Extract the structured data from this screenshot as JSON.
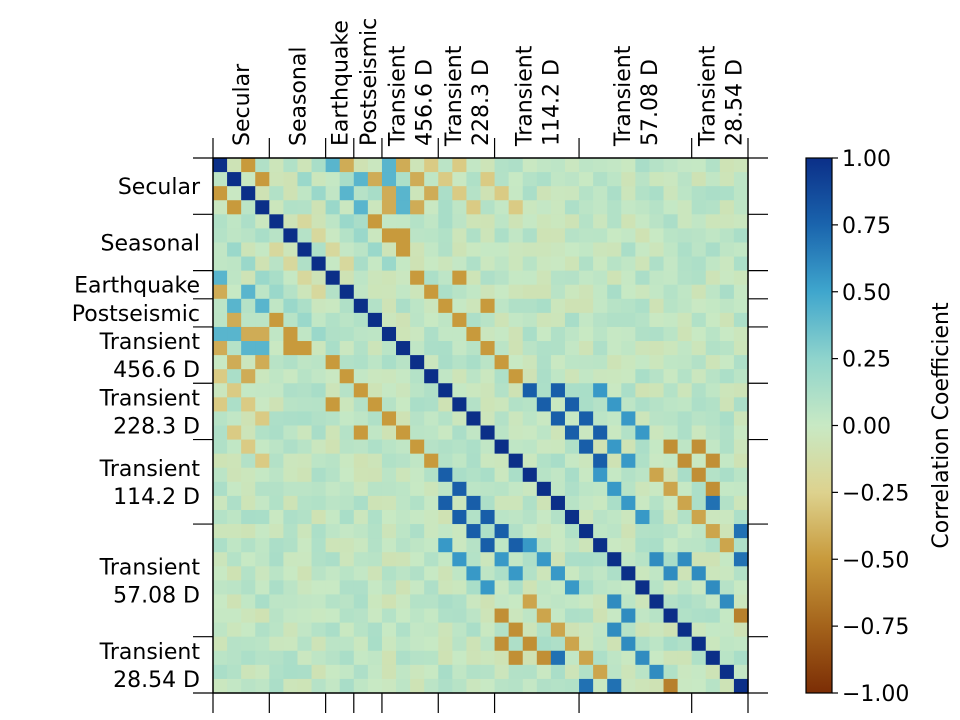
{
  "chart_data": {
    "type": "heatmap",
    "title": "",
    "groups": [
      "Secular",
      "Seasonal",
      "Earthquake",
      "Postseismic",
      "Transient 456.6 D",
      "Transient 228.3 D",
      "Transient 114.2 D",
      "Transient 57.08 D",
      "Transient 28.54 D"
    ],
    "group_sizes": [
      4,
      4,
      2,
      2,
      4,
      4,
      6,
      8,
      4
    ],
    "row_labels": [
      {
        "lines": [
          "Secular"
        ],
        "group": 0
      },
      {
        "lines": [
          "Seasonal"
        ],
        "group": 1
      },
      {
        "lines": [
          "Earthquake"
        ],
        "group": 2
      },
      {
        "lines": [
          "Postseismic"
        ],
        "group": 3
      },
      {
        "lines": [
          "Transient",
          "456.6 D"
        ],
        "group": 4
      },
      {
        "lines": [
          "Transient",
          "228.3 D"
        ],
        "group": 5
      },
      {
        "lines": [
          "Transient",
          "114.2 D"
        ],
        "group": 6
      },
      {
        "lines": [
          "Transient",
          "57.08 D"
        ],
        "group": 7
      },
      {
        "lines": [
          "Transient",
          "28.54 D"
        ],
        "group": 8
      }
    ],
    "col_labels": [
      {
        "lines": [
          "Secular"
        ],
        "group": 0
      },
      {
        "lines": [
          "Seasonal"
        ],
        "group": 1
      },
      {
        "lines": [
          "Earthquake"
        ],
        "group": 2
      },
      {
        "lines": [
          "Postseismic"
        ],
        "group": 3
      },
      {
        "lines": [
          "Transient",
          "456.6 D"
        ],
        "group": 4
      },
      {
        "lines": [
          "Transient",
          "228.3 D"
        ],
        "group": 5
      },
      {
        "lines": [
          "Transient",
          "114.2 D"
        ],
        "group": 6
      },
      {
        "lines": [
          "Transient",
          "57.08 D"
        ],
        "group": 7
      },
      {
        "lines": [
          "Transient",
          "28.54 D"
        ],
        "group": 8
      }
    ],
    "colorbar": {
      "label": "Correlation Coefficient",
      "vmin": -1.0,
      "vmax": 1.0,
      "ticks": [
        1.0,
        0.75,
        0.5,
        0.25,
        0.0,
        -0.25,
        -0.5,
        -0.75,
        -1.0
      ],
      "tick_labels": [
        "1.00",
        "0.75",
        "0.50",
        "0.25",
        "0.00",
        "−0.25",
        "−0.50",
        "−0.75",
        "−1.00"
      ],
      "colors": [
        "#7b2d05",
        "#a4631b",
        "#c89a3c",
        "#ddd28e",
        "#c8e9c4",
        "#8fd4cc",
        "#3fa6cd",
        "#1a64ad",
        "#0b2f88"
      ]
    },
    "background_value": 0.03,
    "highlights": [
      {
        "cells": [
          [
            0,
            2
          ],
          [
            1,
            3
          ],
          [
            4,
            11
          ],
          [
            5,
            12
          ],
          [
            5,
            13
          ],
          [
            6,
            13
          ],
          [
            8,
            14
          ],
          [
            9,
            15
          ],
          [
            10,
            16
          ],
          [
            11,
            17
          ],
          [
            8,
            17
          ],
          [
            10,
            19
          ],
          [
            12,
            18
          ],
          [
            13,
            19
          ],
          [
            14,
            20
          ],
          [
            15,
            21
          ]
        ],
        "value": -0.5
      },
      {
        "cells": [
          [
            0,
            9
          ],
          [
            0,
            13
          ],
          [
            1,
            11
          ],
          [
            2,
            12
          ],
          [
            2,
            15
          ],
          [
            3,
            12
          ],
          [
            3,
            14
          ],
          [
            1,
            14
          ]
        ],
        "value": -0.42
      },
      {
        "cells": [
          [
            0,
            15
          ],
          [
            1,
            16
          ],
          [
            0,
            17
          ],
          [
            2,
            17
          ],
          [
            1,
            19
          ],
          [
            3,
            18
          ],
          [
            3,
            21
          ],
          [
            2,
            20
          ]
        ],
        "value": -0.28
      },
      {
        "cells": [
          [
            0,
            8
          ],
          [
            1,
            10
          ],
          [
            2,
            9
          ],
          [
            3,
            10
          ],
          [
            0,
            12
          ],
          [
            1,
            12
          ],
          [
            2,
            13
          ],
          [
            3,
            13
          ]
        ],
        "value": 0.42
      },
      {
        "cells": [
          [
            16,
            27
          ],
          [
            17,
            28
          ],
          [
            18,
            29
          ],
          [
            19,
            30
          ],
          [
            22,
            27
          ],
          [
            23,
            28
          ],
          [
            24,
            29
          ],
          [
            25,
            30
          ],
          [
            20,
            28
          ],
          [
            21,
            29
          ]
        ],
        "value": 0.55
      },
      {
        "cells": [
          [
            16,
            22
          ],
          [
            17,
            23
          ],
          [
            18,
            24
          ],
          [
            19,
            25
          ],
          [
            20,
            26
          ],
          [
            21,
            27
          ],
          [
            16,
            24
          ],
          [
            17,
            25
          ],
          [
            18,
            26
          ],
          [
            19,
            27
          ]
        ],
        "value": 0.78
      },
      {
        "cells": [
          [
            24,
            33
          ],
          [
            25,
            34
          ],
          [
            26,
            35
          ],
          [
            27,
            36
          ],
          [
            28,
            37
          ],
          [
            29,
            38
          ],
          [
            30,
            39
          ],
          [
            31,
            40
          ],
          [
            24,
            35
          ],
          [
            26,
            37
          ],
          [
            28,
            39
          ],
          [
            30,
            41
          ]
        ],
        "value": 0.7
      },
      {
        "cells": [
          [
            32,
            37
          ],
          [
            33,
            38
          ],
          [
            34,
            39
          ],
          [
            35,
            40
          ],
          [
            36,
            41
          ],
          [
            37,
            42
          ],
          [
            38,
            43
          ],
          [
            39,
            44
          ],
          [
            40,
            45
          ]
        ],
        "value": -0.62
      },
      {
        "cells": [
          [
            34,
            41
          ],
          [
            35,
            42
          ],
          [
            36,
            43
          ],
          [
            37,
            44
          ],
          [
            38,
            45
          ],
          [
            39,
            46
          ],
          [
            40,
            47
          ]
        ],
        "value": -0.58
      },
      {
        "cells": [
          [
            22,
            31
          ],
          [
            23,
            32
          ],
          [
            24,
            33
          ],
          [
            25,
            34
          ],
          [
            26,
            35
          ],
          [
            27,
            36
          ]
        ],
        "value": -0.45
      },
      {
        "cells": [
          [
            28,
            33
          ],
          [
            29,
            34
          ],
          [
            30,
            35
          ],
          [
            31,
            36
          ],
          [
            28,
            31
          ],
          [
            29,
            32
          ]
        ],
        "value": 0.6
      },
      {
        "cells": [
          [
            20,
            32
          ],
          [
            21,
            33
          ],
          [
            22,
            34
          ],
          [
            23,
            35
          ],
          [
            20,
            34
          ],
          [
            21,
            35
          ]
        ],
        "value": -0.55
      },
      {
        "cells": [
          [
            32,
            44
          ],
          [
            33,
            45
          ],
          [
            34,
            46
          ],
          [
            35,
            47
          ],
          [
            36,
            48
          ],
          [
            37,
            49
          ],
          [
            38,
            50
          ],
          [
            39,
            51
          ]
        ],
        "value": -0.65
      },
      {
        "cells": [
          [
            40,
            44
          ],
          [
            41,
            45
          ],
          [
            42,
            46
          ],
          [
            43,
            47
          ],
          [
            44,
            48
          ],
          [
            45,
            49
          ]
        ],
        "value": 0.5
      },
      {
        "cells": [
          [
            1,
            6
          ],
          [
            2,
            7
          ],
          [
            3,
            8
          ],
          [
            4,
            9
          ],
          [
            5,
            10
          ],
          [
            6,
            11
          ],
          [
            7,
            12
          ]
        ],
        "value": 0.2
      },
      {
        "cells": [
          [
            4,
            6
          ],
          [
            5,
            7
          ],
          [
            6,
            8
          ],
          [
            7,
            9
          ]
        ],
        "value": -0.18
      }
    ],
    "diagonal_value": 1.0
  }
}
